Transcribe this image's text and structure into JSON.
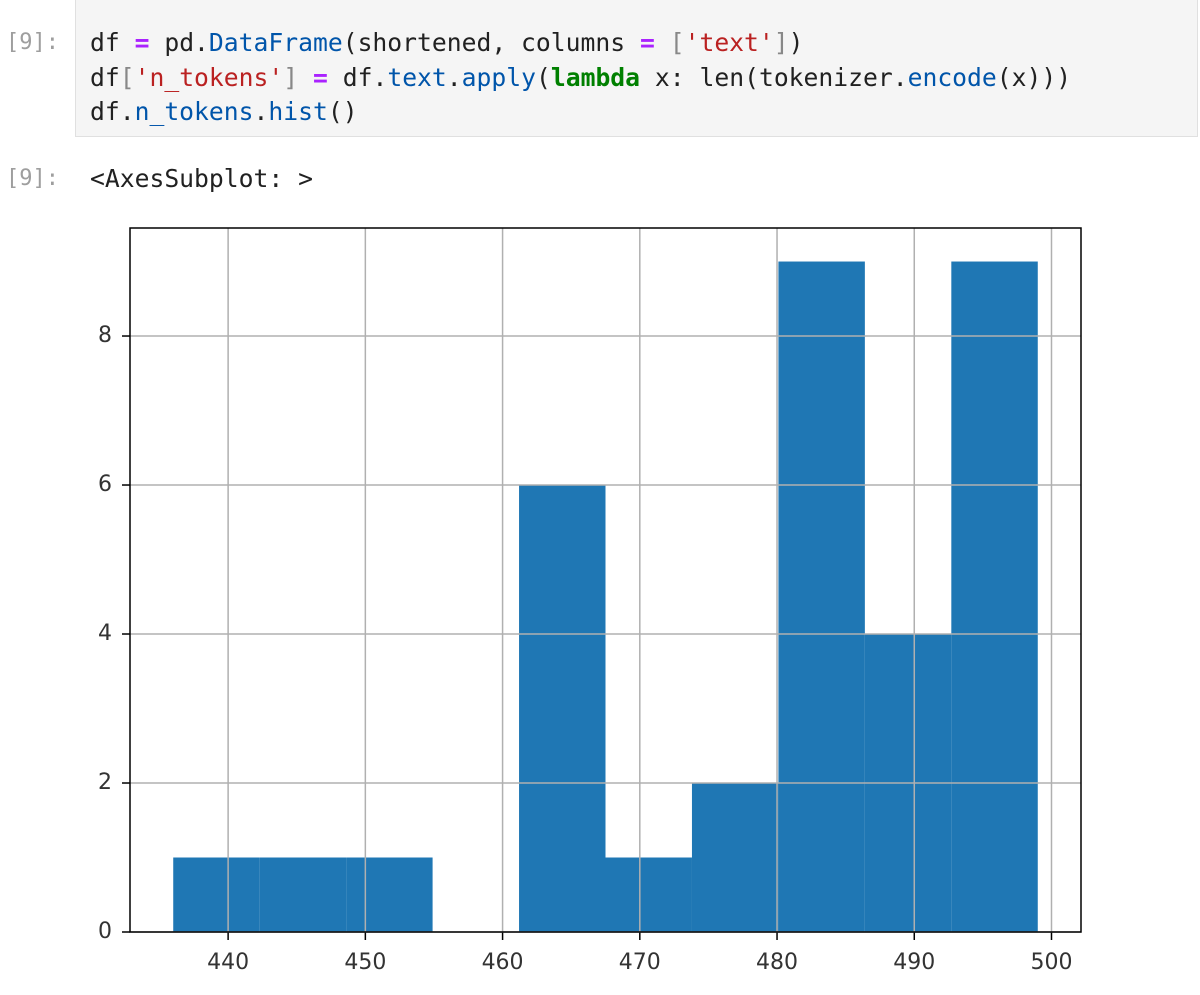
{
  "input_prompt": "[9]:",
  "code": {
    "lines": [
      [
        {
          "text": "df ",
          "color": "#212121"
        },
        {
          "text": "=",
          "color": "#aa22ff",
          "bold": true
        },
        {
          "text": " pd.",
          "color": "#212121"
        },
        {
          "text": "DataFrame",
          "color": "#0055aa"
        },
        {
          "text": "(shortened, columns ",
          "color": "#212121"
        },
        {
          "text": "=",
          "color": "#aa22ff",
          "bold": true
        },
        {
          "text": " ",
          "color": "#212121"
        },
        {
          "text": "[",
          "color": "#888888"
        },
        {
          "text": "'text'",
          "color": "#ba2121"
        },
        {
          "text": "]",
          "color": "#888888"
        },
        {
          "text": ")",
          "color": "#212121"
        }
      ],
      [
        {
          "text": "df",
          "color": "#212121"
        },
        {
          "text": "[",
          "color": "#888888"
        },
        {
          "text": "'n_tokens'",
          "color": "#ba2121"
        },
        {
          "text": "]",
          "color": "#888888"
        },
        {
          "text": " ",
          "color": "#212121"
        },
        {
          "text": "=",
          "color": "#aa22ff",
          "bold": true
        },
        {
          "text": " df.",
          "color": "#212121"
        },
        {
          "text": "text",
          "color": "#0055aa"
        },
        {
          "text": ".",
          "color": "#212121"
        },
        {
          "text": "apply",
          "color": "#0055aa"
        },
        {
          "text": "(",
          "color": "#212121"
        },
        {
          "text": "lambda",
          "color": "#008000",
          "bold": true
        },
        {
          "text": " x: len(tokenizer.",
          "color": "#212121"
        },
        {
          "text": "encode",
          "color": "#0055aa"
        },
        {
          "text": "(x)))",
          "color": "#212121"
        }
      ],
      [
        {
          "text": "df.",
          "color": "#212121"
        },
        {
          "text": "n_tokens",
          "color": "#0055aa"
        },
        {
          "text": ".",
          "color": "#212121"
        },
        {
          "text": "hist",
          "color": "#0055aa"
        },
        {
          "text": "()",
          "color": "#212121"
        }
      ]
    ]
  },
  "output_prompt": "[9]:",
  "output_text": "<AxesSubplot: >",
  "chart_data": {
    "type": "histogram",
    "bins": [
      436,
      442.3,
      448.6,
      454.9,
      461.2,
      467.5,
      473.8,
      480.1,
      486.4,
      492.7,
      499
    ],
    "values": [
      1,
      1,
      1,
      0,
      6,
      1,
      2,
      9,
      4,
      9
    ],
    "color": "#1f77b4",
    "xlim": [
      432.85,
      502.15
    ],
    "xticks": [
      440,
      450,
      460,
      470,
      480,
      490,
      500
    ],
    "ylim": [
      0,
      9.45
    ],
    "yticks": [
      0,
      2,
      4,
      6,
      8
    ],
    "grid": true,
    "grid_color": "#b0b0b0"
  }
}
